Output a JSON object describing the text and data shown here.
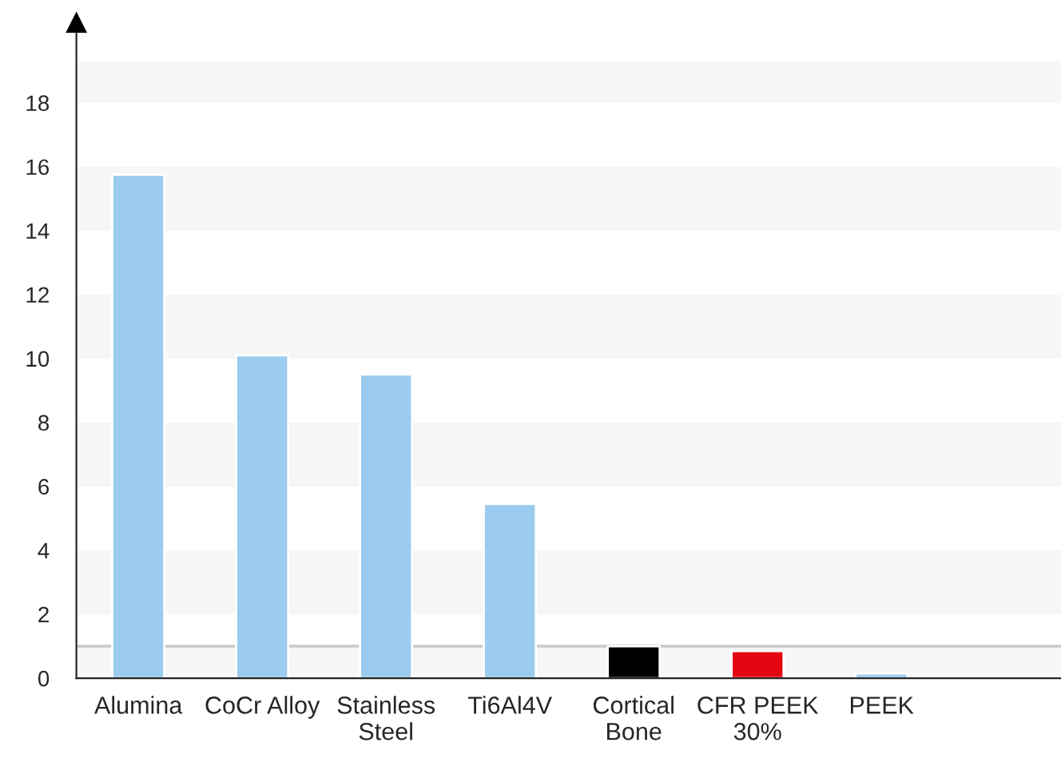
{
  "chart_data": {
    "type": "bar",
    "categories": [
      "Alumina",
      "CoCr Alloy",
      "Stainless\nSteel",
      "Ti6Al4V",
      "Cortical\nBone",
      "CFR PEEK\n30%",
      "PEEK"
    ],
    "values": [
      15.75,
      10.1,
      9.5,
      5.45,
      1.0,
      0.85,
      0.15
    ],
    "colors": [
      "#9bcbee",
      "#9bcbee",
      "#9bcbee",
      "#9bcbee",
      "#000000",
      "#e30613",
      "#9bcbee"
    ],
    "ylim": [
      0,
      20.5
    ],
    "yticks": [
      0,
      2,
      4,
      6,
      8,
      10,
      12,
      14,
      16,
      18
    ],
    "ref_lines": [
      {
        "axis": "y",
        "value": 1.0,
        "color": "#c8c8c8"
      }
    ],
    "bands": [
      {
        "axis": "y",
        "from": 0,
        "to": 1.0,
        "color": "#f6f6f6"
      },
      {
        "axis": "y",
        "from": 2,
        "to": 4,
        "color": "#f6f6f6"
      },
      {
        "axis": "y",
        "from": 6,
        "to": 8,
        "color": "#f6f6f6"
      },
      {
        "axis": "y",
        "from": 10,
        "to": 12,
        "color": "#f6f6f6"
      },
      {
        "axis": "y",
        "from": 14,
        "to": 16,
        "color": "#f6f6f6"
      },
      {
        "axis": "y",
        "from": 18,
        "to": 19.3,
        "color": "#f6f6f6"
      }
    ]
  }
}
